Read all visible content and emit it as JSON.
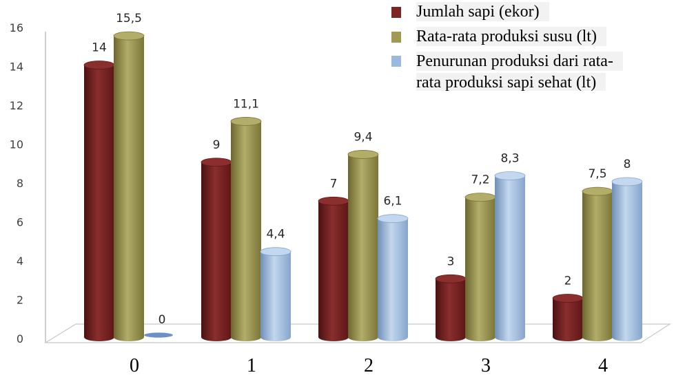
{
  "chart_data": {
    "type": "bar",
    "categories": [
      "0",
      "1",
      "2",
      "3",
      "4"
    ],
    "series": [
      {
        "name": "Jumlah sapi (ekor)",
        "values": [
          14,
          9,
          7,
          3,
          2
        ],
        "labels": [
          "14",
          "9",
          "7",
          "3",
          "2"
        ],
        "color": "#7a2424"
      },
      {
        "name": "Rata-rata produksi susu (lt)",
        "values": [
          15.5,
          11.1,
          9.4,
          7.2,
          7.5
        ],
        "labels": [
          "15,5",
          "11,1",
          "9,4",
          "7,2",
          "7,5"
        ],
        "color": "#a19a55"
      },
      {
        "name": "Penurunan produksi dari rata-rata produksi sapi sehat (lt)",
        "legend_lines": [
          "Penurunan produksi dari rata-",
          "rata produksi sapi sehat (lt)"
        ],
        "values": [
          0,
          4.4,
          6.1,
          8.3,
          8
        ],
        "labels": [
          "0",
          "4,4",
          "6,1",
          "8,3",
          "8"
        ],
        "color": "#9bb9df"
      }
    ],
    "y_ticks": [
      "0",
      "2",
      "4",
      "6",
      "8",
      "10",
      "12",
      "14",
      "16"
    ],
    "ylim": [
      0,
      16
    ],
    "title": "",
    "xlabel": "",
    "ylabel": "",
    "grid": false,
    "legend_position": "top-right",
    "style": "3d-cylinder"
  }
}
